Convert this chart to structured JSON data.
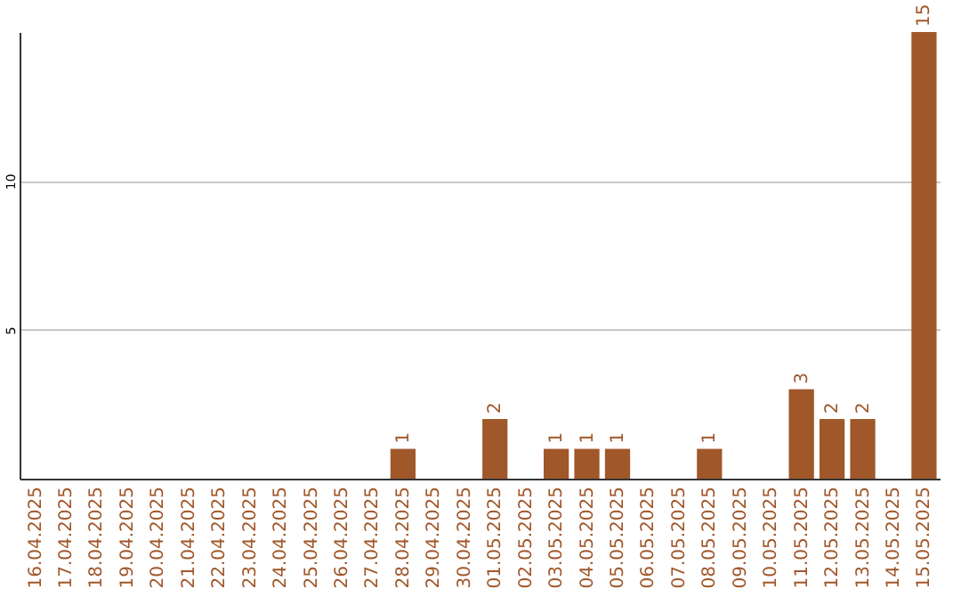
{
  "chart_data": {
    "type": "bar",
    "categories": [
      "16.04.2025",
      "17.04.2025",
      "18.04.2025",
      "19.04.2025",
      "20.04.2025",
      "21.04.2025",
      "22.04.2025",
      "23.04.2025",
      "24.04.2025",
      "25.04.2025",
      "26.04.2025",
      "27.04.2025",
      "28.04.2025",
      "29.04.2025",
      "30.04.2025",
      "01.05.2025",
      "02.05.2025",
      "03.05.2025",
      "04.05.2025",
      "05.05.2025",
      "06.05.2025",
      "07.05.2025",
      "08.05.2025",
      "09.05.2025",
      "10.05.2025",
      "11.05.2025",
      "12.05.2025",
      "13.05.2025",
      "14.05.2025",
      "15.05.2025"
    ],
    "values": [
      0,
      0,
      0,
      0,
      0,
      0,
      0,
      0,
      0,
      0,
      0,
      0,
      1,
      0,
      0,
      2,
      0,
      1,
      1,
      1,
      0,
      0,
      1,
      0,
      0,
      3,
      2,
      2,
      0,
      15
    ],
    "value_labels": [
      null,
      null,
      null,
      null,
      null,
      null,
      null,
      null,
      null,
      null,
      null,
      null,
      "1",
      null,
      null,
      "2",
      null,
      "1",
      "1",
      "1",
      null,
      null,
      "1",
      null,
      null,
      "3",
      "2",
      "2",
      null,
      "15"
    ],
    "color": "#a0572a",
    "ylim": [
      0,
      15
    ],
    "yticks": [
      5,
      10
    ],
    "grid": "y"
  }
}
